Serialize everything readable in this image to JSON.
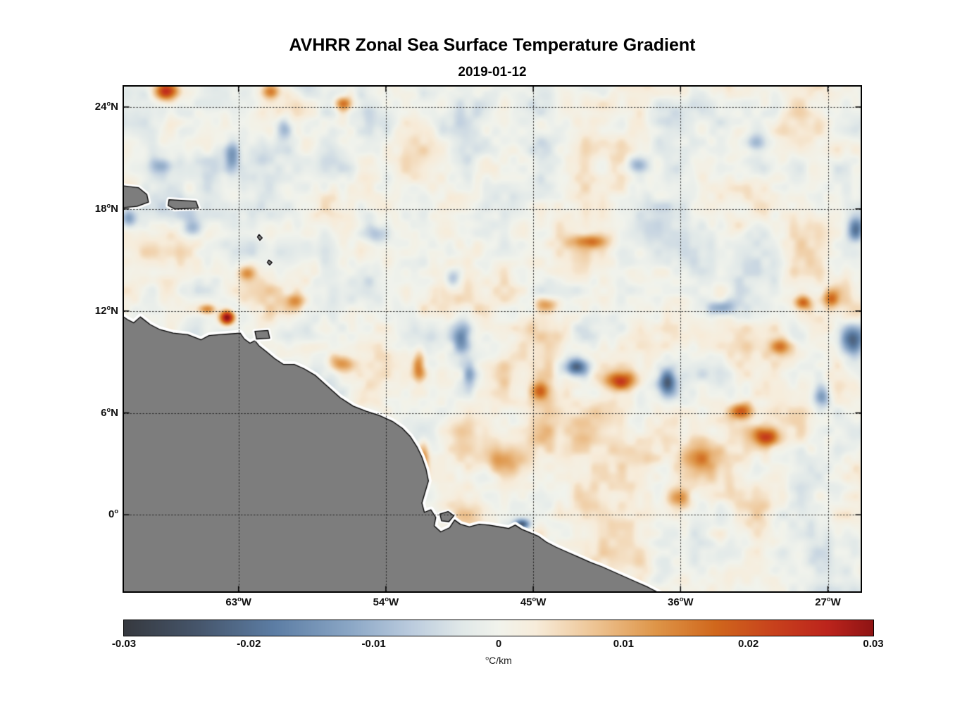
{
  "chart_data": {
    "type": "heatmap",
    "title": "AVHRR Zonal Sea Surface Temperature Gradient",
    "subtitle": "2019-01-12",
    "xlabel": "",
    "ylabel": "",
    "deg_sup": "o",
    "x_axis": {
      "range": [
        -70,
        -25
      ],
      "ticks": [
        {
          "lon": -63,
          "num": "63",
          "hemi": "W"
        },
        {
          "lon": -54,
          "num": "54",
          "hemi": "W"
        },
        {
          "lon": -45,
          "num": "45",
          "hemi": "W"
        },
        {
          "lon": -36,
          "num": "36",
          "hemi": "W"
        },
        {
          "lon": -27,
          "num": "27",
          "hemi": "W"
        }
      ]
    },
    "y_axis": {
      "range": [
        -4.5,
        25.2
      ],
      "ticks": [
        {
          "lat": 24,
          "num": "24",
          "hemi": "N"
        },
        {
          "lat": 18,
          "num": "18",
          "hemi": "N"
        },
        {
          "lat": 12,
          "num": "12",
          "hemi": "N"
        },
        {
          "lat": 6,
          "num": "6",
          "hemi": "N"
        },
        {
          "lat": 0,
          "num": "0",
          "hemi": ""
        }
      ]
    },
    "grid": {
      "on": true,
      "style": "dotted"
    },
    "colorbar": {
      "min": -0.03,
      "max": 0.03,
      "orientation": "horizontal",
      "label_main": "C/km",
      "ticks": [
        {
          "v": -0.03,
          "label": "-0.03"
        },
        {
          "v": -0.02,
          "label": "-0.02"
        },
        {
          "v": -0.01,
          "label": "-0.01"
        },
        {
          "v": 0,
          "label": "0"
        },
        {
          "v": 0.01,
          "label": "0.01"
        },
        {
          "v": 0.02,
          "label": "0.02"
        },
        {
          "v": 0.03,
          "label": "0.03"
        }
      ],
      "stops": [
        [
          0.0,
          "#36393f"
        ],
        [
          0.1,
          "#46566c"
        ],
        [
          0.2,
          "#5c7da4"
        ],
        [
          0.3,
          "#8aa6c5"
        ],
        [
          0.38,
          "#b9cadd"
        ],
        [
          0.45,
          "#e0e8e8"
        ],
        [
          0.5,
          "#f1f3ec"
        ],
        [
          0.55,
          "#f7ecda"
        ],
        [
          0.63,
          "#edc392"
        ],
        [
          0.71,
          "#de9548"
        ],
        [
          0.79,
          "#d0671c"
        ],
        [
          0.87,
          "#c7401c"
        ],
        [
          0.94,
          "#bc241c"
        ],
        [
          1.0,
          "#8f1414"
        ]
      ]
    },
    "field": {
      "base": 0.0005,
      "noise": {
        "seed": 11,
        "amplitude": 0.0085,
        "octaves": [
          [
            2.6,
            1.0
          ],
          [
            1.2,
            0.7
          ],
          [
            0.55,
            0.45
          ]
        ]
      },
      "features": [
        [
          -63.7,
          11.6,
          0.035,
          0.45,
          0.4
        ],
        [
          -64.9,
          12.1,
          0.014,
          0.6,
          0.3
        ],
        [
          -67.4,
          24.9,
          0.024,
          0.7,
          0.5
        ],
        [
          -61.0,
          24.9,
          0.012,
          0.6,
          0.4
        ],
        [
          -56.6,
          24.2,
          0.016,
          0.55,
          0.4
        ],
        [
          -60.2,
          22.8,
          -0.012,
          0.5,
          0.7
        ],
        [
          -63.4,
          21.0,
          -0.013,
          0.45,
          1.0
        ],
        [
          -67.7,
          20.5,
          -0.012,
          0.8,
          0.5
        ],
        [
          -69.7,
          17.4,
          -0.012,
          0.5,
          0.5
        ],
        [
          -65.8,
          16.9,
          -0.01,
          0.6,
          0.5
        ],
        [
          -49.4,
          10.4,
          -0.017,
          0.55,
          1.1
        ],
        [
          -48.9,
          8.3,
          -0.012,
          0.4,
          0.9
        ],
        [
          -42.4,
          8.7,
          -0.021,
          0.75,
          0.5
        ],
        [
          -39.7,
          7.9,
          0.02,
          0.95,
          0.55
        ],
        [
          -36.8,
          7.8,
          -0.021,
          0.5,
          0.8
        ],
        [
          -25.5,
          10.2,
          -0.024,
          0.8,
          1.0
        ],
        [
          -27.4,
          7.0,
          -0.018,
          0.5,
          0.65
        ],
        [
          -30.7,
          4.6,
          0.02,
          0.8,
          0.55
        ],
        [
          -32.3,
          6.1,
          0.016,
          0.7,
          0.5
        ],
        [
          -28.5,
          12.5,
          0.016,
          0.5,
          0.4
        ],
        [
          -33.5,
          12.2,
          -0.014,
          0.85,
          0.45
        ],
        [
          -41.6,
          16.1,
          0.013,
          1.1,
          0.4
        ],
        [
          -25.3,
          16.8,
          -0.016,
          0.45,
          0.7
        ],
        [
          -52.0,
          8.8,
          0.015,
          0.4,
          1.0
        ],
        [
          -56.8,
          8.9,
          0.013,
          0.8,
          0.5
        ],
        [
          -45.7,
          -0.55,
          -0.022,
          0.5,
          0.3
        ],
        [
          -46.8,
          3.2,
          0.011,
          1.3,
          0.9
        ],
        [
          -38.6,
          20.6,
          -0.012,
          0.65,
          0.5
        ],
        [
          -31.4,
          21.9,
          -0.01,
          0.75,
          0.5
        ],
        [
          -34.9,
          3.4,
          0.012,
          1.0,
          0.8
        ],
        [
          -49.9,
          13.9,
          -0.01,
          0.45,
          0.55
        ],
        [
          -44.2,
          12.4,
          0.01,
          0.7,
          0.4
        ],
        [
          -59.5,
          12.6,
          0.01,
          0.6,
          0.4
        ],
        [
          -36.2,
          1.0,
          0.012,
          0.8,
          0.6
        ],
        [
          -29.9,
          9.9,
          0.012,
          0.6,
          0.45
        ],
        [
          -26.8,
          12.7,
          0.014,
          0.5,
          0.45
        ],
        [
          -44.6,
          7.3,
          0.012,
          0.55,
          0.5
        ],
        [
          -54.5,
          16.5,
          -0.009,
          0.7,
          0.6
        ],
        [
          -62.5,
          14.2,
          0.009,
          0.5,
          0.4
        ],
        [
          -51.7,
          3.5,
          0.013,
          0.35,
          0.9
        ],
        [
          -44.0,
          3.5,
          0.0035,
          7.0,
          4.0
        ]
      ]
    },
    "land": {
      "fill": "#7d7d7d",
      "edge": "#000000",
      "halo": "#ffffff",
      "polygons": [
        {
          "name": "south-america",
          "halo": 9,
          "pts": [
            [
              -70.4,
              11.9
            ],
            [
              -69.8,
              11.5
            ],
            [
              -69.4,
              11.3
            ],
            [
              -69.0,
              11.65
            ],
            [
              -68.4,
              11.2
            ],
            [
              -67.8,
              10.9
            ],
            [
              -67.0,
              10.7
            ],
            [
              -66.1,
              10.6
            ],
            [
              -65.3,
              10.3
            ],
            [
              -64.8,
              10.55
            ],
            [
              -64.2,
              10.6
            ],
            [
              -63.5,
              10.65
            ],
            [
              -62.9,
              10.7
            ],
            [
              -62.65,
              10.35
            ],
            [
              -62.3,
              10.1
            ],
            [
              -62.0,
              10.25
            ],
            [
              -61.75,
              9.95
            ],
            [
              -61.3,
              9.6
            ],
            [
              -60.8,
              9.2
            ],
            [
              -60.25,
              8.85
            ],
            [
              -59.6,
              8.85
            ],
            [
              -59.0,
              8.6
            ],
            [
              -58.3,
              8.2
            ],
            [
              -57.5,
              7.5
            ],
            [
              -56.8,
              6.9
            ],
            [
              -56.0,
              6.4
            ],
            [
              -55.2,
              6.1
            ],
            [
              -54.4,
              5.85
            ],
            [
              -53.6,
              5.5
            ],
            [
              -53.0,
              5.1
            ],
            [
              -52.5,
              4.6
            ],
            [
              -52.1,
              4.0
            ],
            [
              -51.8,
              3.4
            ],
            [
              -51.55,
              2.7
            ],
            [
              -51.4,
              2.0
            ],
            [
              -51.6,
              1.35
            ],
            [
              -51.8,
              0.7
            ],
            [
              -51.65,
              0.15
            ],
            [
              -51.25,
              0.3
            ],
            [
              -50.95,
              -0.15
            ],
            [
              -51.05,
              -0.65
            ],
            [
              -50.65,
              -1.0
            ],
            [
              -50.1,
              -0.75
            ],
            [
              -49.8,
              -0.3
            ],
            [
              -49.45,
              -0.55
            ],
            [
              -48.9,
              -0.7
            ],
            [
              -48.3,
              -0.55
            ],
            [
              -47.7,
              -0.6
            ],
            [
              -47.1,
              -0.7
            ],
            [
              -46.5,
              -0.8
            ],
            [
              -46.1,
              -0.6
            ],
            [
              -45.7,
              -0.85
            ],
            [
              -45.2,
              -1.05
            ],
            [
              -44.7,
              -1.25
            ],
            [
              -44.2,
              -1.6
            ],
            [
              -43.6,
              -1.9
            ],
            [
              -42.9,
              -2.2
            ],
            [
              -42.2,
              -2.5
            ],
            [
              -41.5,
              -2.8
            ],
            [
              -40.8,
              -3.05
            ],
            [
              -40.1,
              -3.35
            ],
            [
              -39.4,
              -3.65
            ],
            [
              -38.7,
              -3.95
            ],
            [
              -38.0,
              -4.25
            ],
            [
              -37.3,
              -4.6
            ],
            [
              -70.4,
              -4.6
            ]
          ]
        },
        {
          "name": "hispaniola",
          "halo": 7,
          "pts": [
            [
              -70.4,
              19.4
            ],
            [
              -69.1,
              19.25
            ],
            [
              -68.6,
              18.85
            ],
            [
              -68.5,
              18.4
            ],
            [
              -69.2,
              18.15
            ],
            [
              -70.4,
              18.05
            ]
          ]
        },
        {
          "name": "puerto-rico",
          "halo": 7,
          "pts": [
            [
              -67.25,
              18.55
            ],
            [
              -65.6,
              18.45
            ],
            [
              -65.45,
              18.05
            ],
            [
              -66.9,
              18.0
            ],
            [
              -67.3,
              18.2
            ]
          ]
        },
        {
          "name": "trinidad",
          "halo": 7,
          "pts": [
            [
              -62.0,
              10.8
            ],
            [
              -61.2,
              10.85
            ],
            [
              -61.1,
              10.4
            ],
            [
              -61.9,
              10.35
            ]
          ]
        },
        {
          "name": "marajo",
          "halo": 6,
          "pts": [
            [
              -50.7,
              0.05
            ],
            [
              -50.2,
              0.2
            ],
            [
              -49.85,
              -0.05
            ],
            [
              -50.15,
              -0.4
            ],
            [
              -50.6,
              -0.35
            ]
          ]
        },
        {
          "name": "dominica",
          "halo": 4,
          "pts": [
            [
              -61.75,
              16.5
            ],
            [
              -61.55,
              16.3
            ],
            [
              -61.7,
              16.15
            ],
            [
              -61.85,
              16.35
            ]
          ]
        },
        {
          "name": "martinique",
          "halo": 4,
          "pts": [
            [
              -61.15,
              15.0
            ],
            [
              -60.95,
              14.85
            ],
            [
              -61.1,
              14.7
            ],
            [
              -61.25,
              14.85
            ]
          ]
        }
      ]
    }
  }
}
